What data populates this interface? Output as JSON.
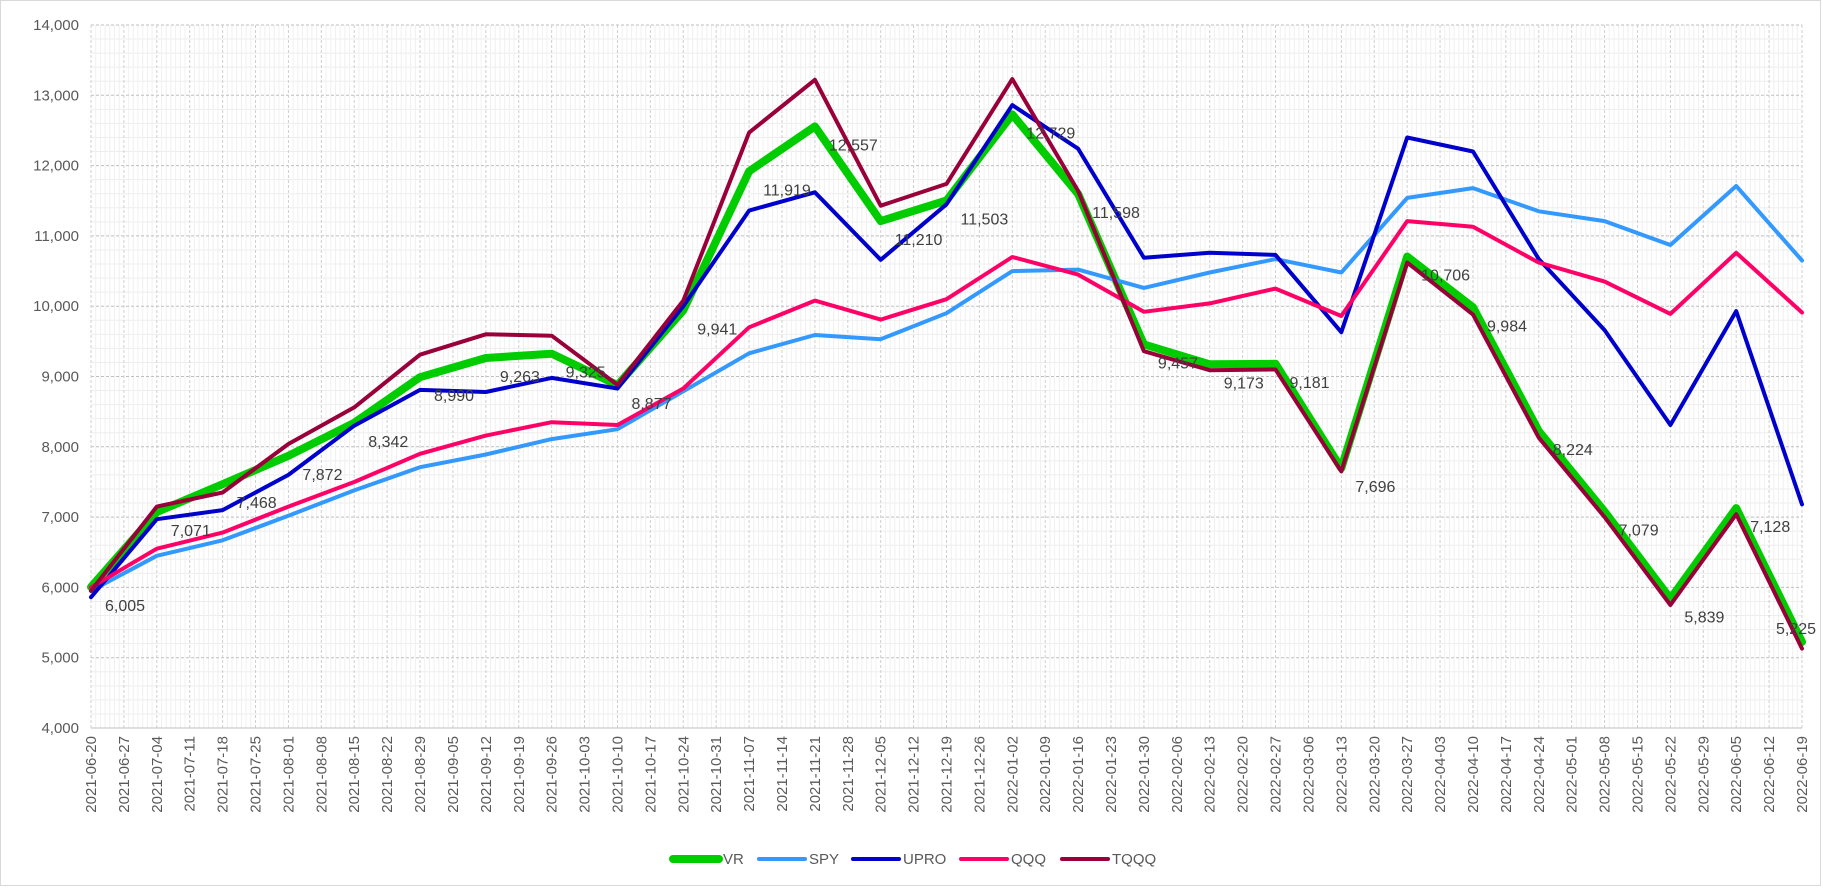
{
  "chart_data": {
    "type": "line",
    "title": "",
    "xlabel": "",
    "ylabel": "",
    "ylim": [
      4000,
      14000
    ],
    "yticks": [
      "4,000",
      "5,000",
      "6,000",
      "7,000",
      "8,000",
      "9,000",
      "10,000",
      "11,000",
      "12,000",
      "13,000",
      "14,000"
    ],
    "grid": true,
    "legend": "bottom",
    "x": [
      "2021-06-20",
      "2021-06-27",
      "2021-07-04",
      "2021-07-11",
      "2021-07-18",
      "2021-07-25",
      "2021-08-01",
      "2021-08-08",
      "2021-08-15",
      "2021-08-22",
      "2021-08-29",
      "2021-09-05",
      "2021-09-12",
      "2021-09-19",
      "2021-09-26",
      "2021-10-03",
      "2021-10-10",
      "2021-10-17",
      "2021-10-24",
      "2021-10-31",
      "2021-11-07",
      "2021-11-14",
      "2021-11-21",
      "2021-11-28",
      "2021-12-05",
      "2021-12-12",
      "2021-12-19",
      "2021-12-26",
      "2022-01-02",
      "2022-01-09",
      "2022-01-16",
      "2022-01-23",
      "2022-01-30",
      "2022-02-06",
      "2022-02-13",
      "2022-02-20",
      "2022-02-27",
      "2022-03-06",
      "2022-03-13",
      "2022-03-20",
      "2022-03-27",
      "2022-04-03",
      "2022-04-10",
      "2022-04-17",
      "2022-04-24",
      "2022-05-01",
      "2022-05-08",
      "2022-05-15",
      "2022-05-22",
      "2022-05-29",
      "2022-06-05",
      "2022-06-12",
      "2022-06-19"
    ],
    "series": [
      {
        "name": "VR",
        "color": "#00cc00",
        "width": 8,
        "points": [
          [
            0,
            6005
          ],
          [
            2,
            7071
          ],
          [
            4,
            7468
          ],
          [
            6,
            7872
          ],
          [
            8,
            8342
          ],
          [
            10,
            8990
          ],
          [
            12,
            9263
          ],
          [
            14,
            9325
          ],
          [
            16,
            8877
          ],
          [
            18,
            9941
          ],
          [
            20,
            11919
          ],
          [
            22,
            12557
          ],
          [
            24,
            11210
          ],
          [
            26,
            11503
          ],
          [
            28,
            12729
          ],
          [
            30,
            11598
          ],
          [
            32,
            9457
          ],
          [
            34,
            9173
          ],
          [
            36,
            9181
          ],
          [
            38,
            7696
          ],
          [
            40,
            10706
          ],
          [
            42,
            9984
          ],
          [
            44,
            8224
          ],
          [
            46,
            7079
          ],
          [
            48,
            5839
          ],
          [
            50,
            7128
          ],
          [
            52,
            5225
          ]
        ]
      },
      {
        "name": "SPY",
        "color": "#3399ff",
        "width": 4,
        "points": [
          [
            0,
            5950
          ],
          [
            2,
            6450
          ],
          [
            4,
            6670
          ],
          [
            6,
            7020
          ],
          [
            8,
            7380
          ],
          [
            10,
            7710
          ],
          [
            12,
            7890
          ],
          [
            14,
            8110
          ],
          [
            16,
            8250
          ],
          [
            18,
            8790
          ],
          [
            20,
            9330
          ],
          [
            22,
            9590
          ],
          [
            24,
            9530
          ],
          [
            26,
            9900
          ],
          [
            28,
            10500
          ],
          [
            30,
            10520
          ],
          [
            32,
            10260
          ],
          [
            34,
            10480
          ],
          [
            36,
            10670
          ],
          [
            38,
            10480
          ],
          [
            40,
            11540
          ],
          [
            42,
            11680
          ],
          [
            44,
            11350
          ],
          [
            46,
            11210
          ],
          [
            48,
            10870
          ],
          [
            50,
            11710
          ],
          [
            52,
            10650
          ]
        ]
      },
      {
        "name": "UPRO",
        "color": "#0000cc",
        "width": 4,
        "points": [
          [
            0,
            5860
          ],
          [
            2,
            6970
          ],
          [
            4,
            7100
          ],
          [
            6,
            7600
          ],
          [
            8,
            8300
          ],
          [
            10,
            8810
          ],
          [
            12,
            8780
          ],
          [
            14,
            8980
          ],
          [
            16,
            8830
          ],
          [
            18,
            10000
          ],
          [
            20,
            11360
          ],
          [
            22,
            11620
          ],
          [
            24,
            10660
          ],
          [
            26,
            11450
          ],
          [
            28,
            12860
          ],
          [
            30,
            12240
          ],
          [
            32,
            10690
          ],
          [
            34,
            10760
          ],
          [
            36,
            10730
          ],
          [
            38,
            9630
          ],
          [
            40,
            12400
          ],
          [
            42,
            12200
          ],
          [
            44,
            10670
          ],
          [
            46,
            9660
          ],
          [
            48,
            8310
          ],
          [
            50,
            9930
          ],
          [
            52,
            7180
          ]
        ]
      },
      {
        "name": "QQQ",
        "color": "#ff0066",
        "width": 4,
        "points": [
          [
            0,
            6000
          ],
          [
            2,
            6550
          ],
          [
            4,
            6780
          ],
          [
            6,
            7150
          ],
          [
            8,
            7500
          ],
          [
            10,
            7900
          ],
          [
            12,
            8160
          ],
          [
            14,
            8350
          ],
          [
            16,
            8310
          ],
          [
            18,
            8830
          ],
          [
            20,
            9700
          ],
          [
            22,
            10080
          ],
          [
            24,
            9810
          ],
          [
            26,
            10100
          ],
          [
            28,
            10700
          ],
          [
            30,
            10450
          ],
          [
            32,
            9920
          ],
          [
            34,
            10040
          ],
          [
            36,
            10250
          ],
          [
            38,
            9860
          ],
          [
            40,
            11210
          ],
          [
            42,
            11130
          ],
          [
            44,
            10620
          ],
          [
            46,
            10350
          ],
          [
            48,
            9890
          ],
          [
            50,
            10760
          ],
          [
            52,
            9910
          ]
        ]
      },
      {
        "name": "TQQQ",
        "color": "#99003a",
        "width": 4,
        "points": [
          [
            0,
            5950
          ],
          [
            2,
            7150
          ],
          [
            4,
            7350
          ],
          [
            6,
            8040
          ],
          [
            8,
            8560
          ],
          [
            10,
            9310
          ],
          [
            12,
            9600
          ],
          [
            14,
            9580
          ],
          [
            16,
            8880
          ],
          [
            18,
            10080
          ],
          [
            20,
            12470
          ],
          [
            22,
            13220
          ],
          [
            24,
            11430
          ],
          [
            26,
            11740
          ],
          [
            28,
            13230
          ],
          [
            30,
            11640
          ],
          [
            32,
            9360
          ],
          [
            34,
            9090
          ],
          [
            36,
            9100
          ],
          [
            38,
            7650
          ],
          [
            40,
            10620
          ],
          [
            42,
            9880
          ],
          [
            44,
            8130
          ],
          [
            46,
            7000
          ],
          [
            48,
            5750
          ],
          [
            50,
            7040
          ],
          [
            52,
            5130
          ]
        ]
      }
    ],
    "data_labels": [
      {
        "series": "VR",
        "index": 0,
        "text": "6,005"
      },
      {
        "series": "VR",
        "index": 2,
        "text": "7,071"
      },
      {
        "series": "VR",
        "index": 4,
        "text": "7,468"
      },
      {
        "series": "VR",
        "index": 6,
        "text": "7,872"
      },
      {
        "series": "VR",
        "index": 8,
        "text": "8,342"
      },
      {
        "series": "VR",
        "index": 10,
        "text": "8,990"
      },
      {
        "series": "VR",
        "index": 12,
        "text": "9,263"
      },
      {
        "series": "VR",
        "index": 14,
        "text": "9,325"
      },
      {
        "series": "VR",
        "index": 16,
        "text": "8,877"
      },
      {
        "series": "VR",
        "index": 18,
        "text": "9,941"
      },
      {
        "series": "VR",
        "index": 20,
        "text": "11,919"
      },
      {
        "series": "VR",
        "index": 22,
        "text": "12,557"
      },
      {
        "series": "VR",
        "index": 24,
        "text": "11,210"
      },
      {
        "series": "VR",
        "index": 26,
        "text": "11,503"
      },
      {
        "series": "VR",
        "index": 28,
        "text": "12,729"
      },
      {
        "series": "VR",
        "index": 30,
        "text": "11,598"
      },
      {
        "series": "VR",
        "index": 32,
        "text": "9,457"
      },
      {
        "series": "VR",
        "index": 34,
        "text": "9,173"
      },
      {
        "series": "VR",
        "index": 36,
        "text": "9,181"
      },
      {
        "series": "VR",
        "index": 38,
        "text": "7,696"
      },
      {
        "series": "VR",
        "index": 40,
        "text": "10,706"
      },
      {
        "series": "VR",
        "index": 42,
        "text": "9,984"
      },
      {
        "series": "VR",
        "index": 44,
        "text": "8,224"
      },
      {
        "series": "VR",
        "index": 46,
        "text": "7,079"
      },
      {
        "series": "VR",
        "index": 48,
        "text": "5,839"
      },
      {
        "series": "VR",
        "index": 50,
        "text": "7,128"
      },
      {
        "series": "VR",
        "index": 52,
        "text": "5,225"
      }
    ]
  }
}
